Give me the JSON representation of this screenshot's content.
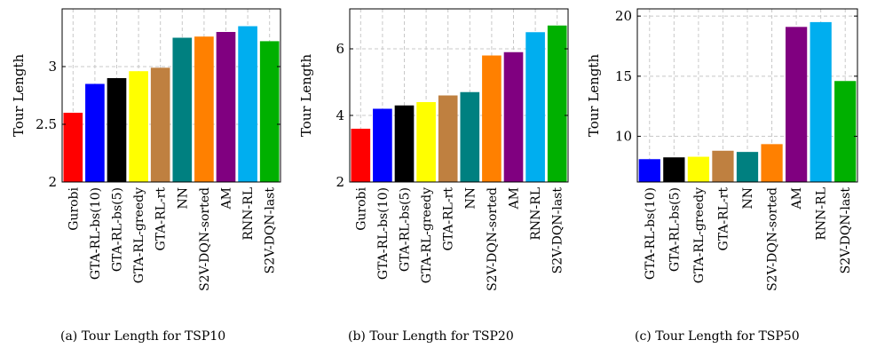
{
  "chart_data": [
    {
      "type": "bar",
      "ylabel": "Tour Length",
      "ylim": [
        2,
        3.5
      ],
      "yticks": [
        2,
        2.5,
        3
      ],
      "ytick_labels": [
        "2",
        "2.5",
        "3"
      ],
      "grid": "dashed",
      "categories": [
        "Gurobi",
        "GTA-RL-bs(10)",
        "GTA-RL-bs(5)",
        "GTA-RL-greedy",
        "GTA-RL-rt",
        "NN",
        "S2V-DQN-sorted",
        "AM",
        "RNN-RL",
        "S2V-DQN-last"
      ],
      "values": [
        2.6,
        2.85,
        2.9,
        2.96,
        2.99,
        3.25,
        3.26,
        3.3,
        3.35,
        3.22
      ],
      "colors": [
        "#ff0000",
        "#0000ff",
        "#000000",
        "#ffff00",
        "#bf8040",
        "#008080",
        "#ff8000",
        "#800080",
        "#00aeef",
        "#00b000"
      ],
      "caption": "(a) Tour Length for TSP10"
    },
    {
      "type": "bar",
      "ylabel": "Tour Length",
      "ylim": [
        2,
        7.2
      ],
      "yticks": [
        2,
        4,
        6
      ],
      "ytick_labels": [
        "2",
        "4",
        "6"
      ],
      "grid": "dashed",
      "categories": [
        "Gurobi",
        "GTA-RL-bs(10)",
        "GTA-RL-bs(5)",
        "GTA-RL-greedy",
        "GTA-RL-rt",
        "NN",
        "S2V-DQN-sorted",
        "AM",
        "RNN-RL",
        "S2V-DQN-last"
      ],
      "values": [
        3.6,
        4.2,
        4.3,
        4.4,
        4.6,
        4.7,
        5.8,
        5.9,
        6.5,
        6.7
      ],
      "colors": [
        "#ff0000",
        "#0000ff",
        "#000000",
        "#ffff00",
        "#bf8040",
        "#008080",
        "#ff8000",
        "#800080",
        "#00aeef",
        "#00b000"
      ],
      "caption": "(b) Tour Length for TSP20"
    },
    {
      "type": "bar",
      "ylabel": "Tour Length",
      "ylim": [
        6.2,
        20.6
      ],
      "yticks": [
        10,
        15,
        20
      ],
      "ytick_labels": [
        "10",
        "15",
        "20"
      ],
      "grid": "dashed",
      "categories": [
        "GTA-RL-bs(10)",
        "GTA-RL-bs(5)",
        "GTA-RL-greedy",
        "GTA-RL-rt",
        "NN",
        "S2V-DQN-sorted",
        "AM",
        "RNN-RL",
        "S2V-DQN-last"
      ],
      "values": [
        8.1,
        8.25,
        8.3,
        8.8,
        8.7,
        9.35,
        19.1,
        19.5,
        14.6
      ],
      "colors": [
        "#0000ff",
        "#000000",
        "#ffff00",
        "#bf8040",
        "#008080",
        "#ff8000",
        "#800080",
        "#00aeef",
        "#00b000"
      ],
      "caption": "(c) Tour Length for TSP50"
    }
  ]
}
